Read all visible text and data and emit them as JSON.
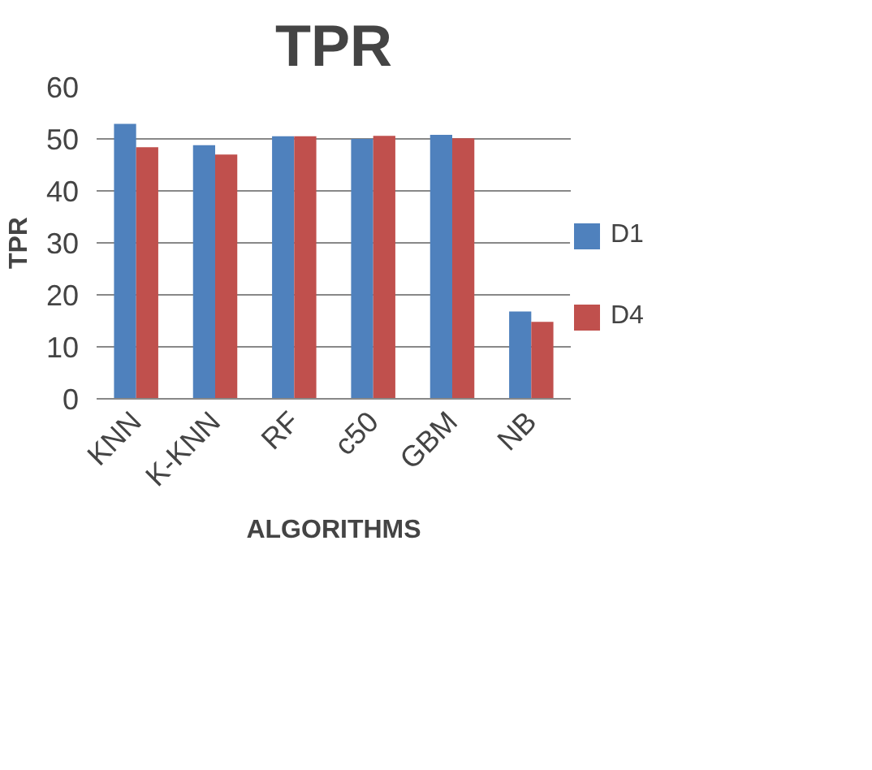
{
  "chart_data": {
    "type": "bar",
    "title": "TPR",
    "xlabel": "ALGORITHMS",
    "ylabel": "TPR",
    "categories": [
      "KNN",
      "K-KNN",
      "RF",
      "c50",
      "GBM",
      "NB"
    ],
    "series": [
      {
        "name": "D1",
        "color": "#4f81bd",
        "values": [
          52.9,
          48.8,
          50.5,
          50.0,
          50.8,
          16.8
        ]
      },
      {
        "name": "D4",
        "color": "#c0504d",
        "values": [
          48.4,
          47.0,
          50.5,
          50.6,
          50.1,
          14.8
        ]
      }
    ],
    "ylim": [
      0,
      60
    ],
    "yticks": [
      0,
      10,
      20,
      30,
      40,
      50,
      60
    ],
    "grid": "y",
    "legend": "right"
  }
}
